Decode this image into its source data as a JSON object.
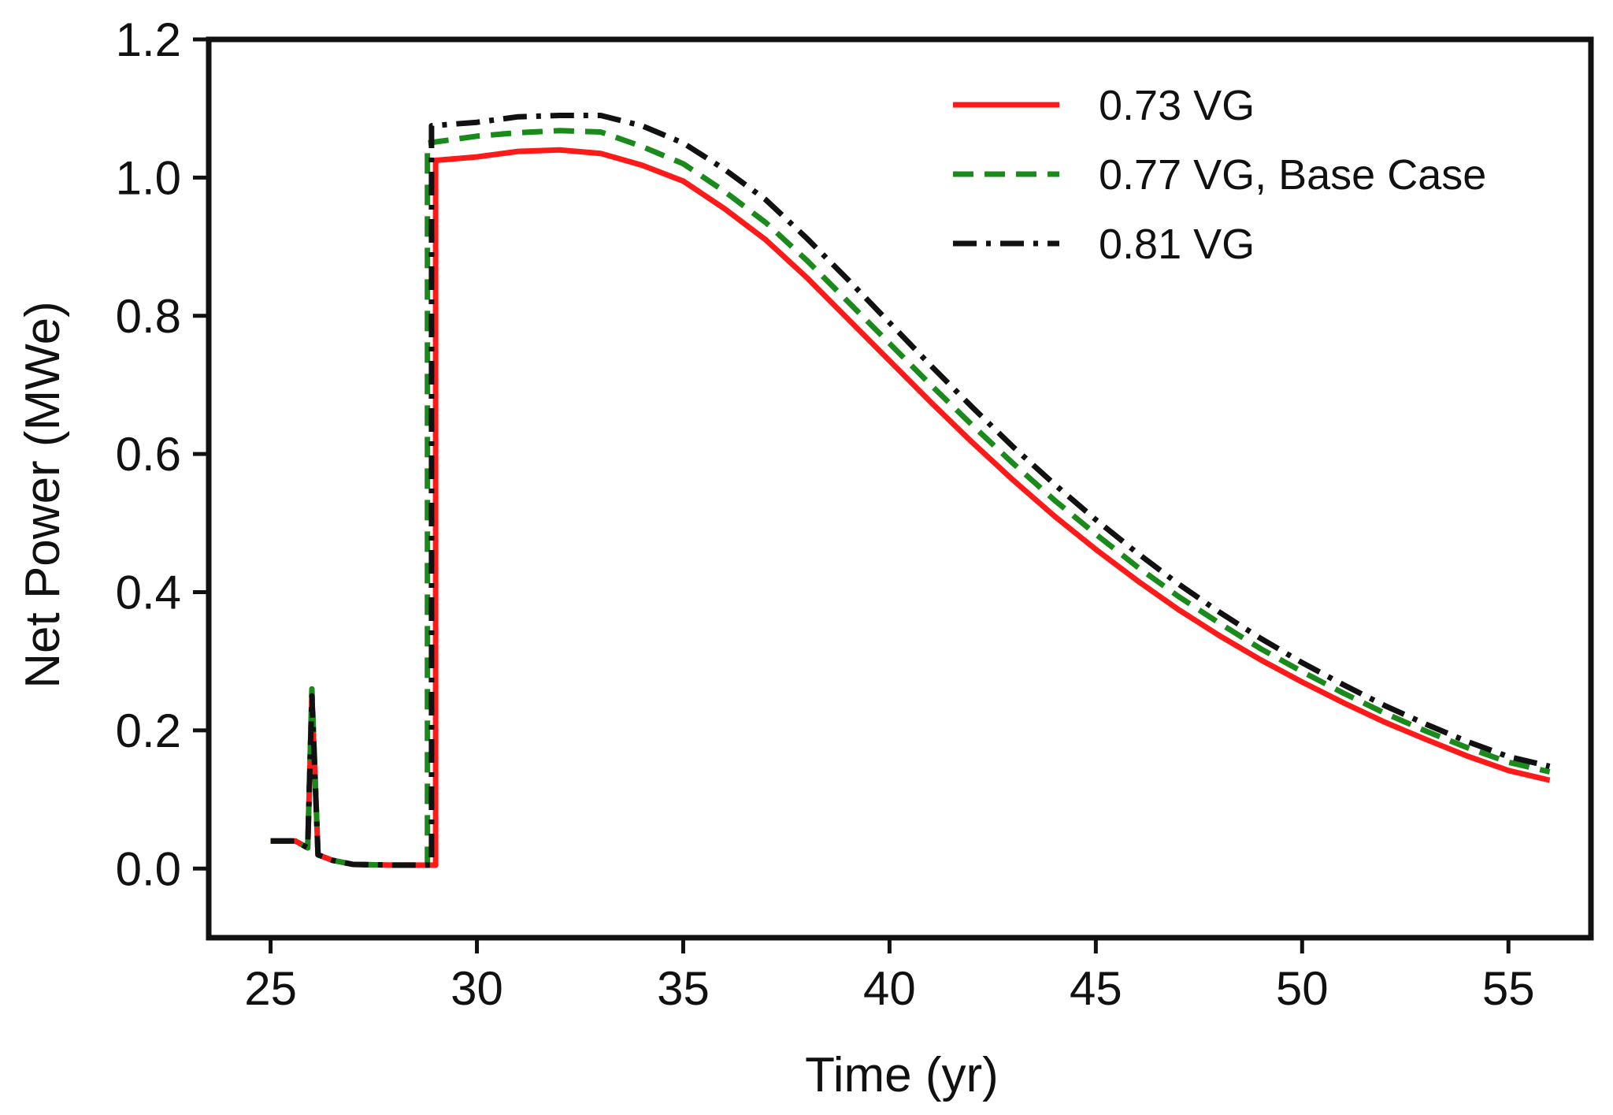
{
  "chart_data": {
    "type": "line",
    "title": "",
    "xlabel": "Time (yr)",
    "ylabel": "Net Power (MWe)",
    "xlim": [
      23.5,
      57
    ],
    "ylim": [
      -0.1,
      1.2
    ],
    "xticks": [
      25,
      30,
      35,
      40,
      45,
      50,
      55
    ],
    "xtick_labels": [
      "25",
      "30",
      "35",
      "40",
      "45",
      "50",
      "55"
    ],
    "yticks": [
      0.0,
      0.2,
      0.4,
      0.6,
      0.8,
      1.0,
      1.2
    ],
    "ytick_labels": [
      "0.0",
      "0.2",
      "0.4",
      "0.6",
      "0.8",
      "1.0",
      "1.2"
    ],
    "grid": false,
    "legend_position": "top-right",
    "series": [
      {
        "name": "0.73 VG",
        "color": "#ff1a1a",
        "dash": "solid",
        "points": [
          [
            25.0,
            0.04
          ],
          [
            25.6,
            0.04
          ],
          [
            25.9,
            0.03
          ],
          [
            26.0,
            0.25
          ],
          [
            26.15,
            0.02
          ],
          [
            26.5,
            0.012
          ],
          [
            27.0,
            0.006
          ],
          [
            28.0,
            0.005
          ],
          [
            29.0,
            0.005
          ],
          [
            29.0,
            1.025
          ],
          [
            30.0,
            1.03
          ],
          [
            31.0,
            1.038
          ],
          [
            32.0,
            1.04
          ],
          [
            33.0,
            1.035
          ],
          [
            34.0,
            1.018
          ],
          [
            35.0,
            0.995
          ],
          [
            36.0,
            0.955
          ],
          [
            37.0,
            0.91
          ],
          [
            38.0,
            0.855
          ],
          [
            39.0,
            0.795
          ],
          [
            40.0,
            0.735
          ],
          [
            41.0,
            0.675
          ],
          [
            42.0,
            0.617
          ],
          [
            43.0,
            0.562
          ],
          [
            44.0,
            0.51
          ],
          [
            45.0,
            0.462
          ],
          [
            46.0,
            0.417
          ],
          [
            47.0,
            0.375
          ],
          [
            48.0,
            0.337
          ],
          [
            49.0,
            0.302
          ],
          [
            50.0,
            0.27
          ],
          [
            51.0,
            0.24
          ],
          [
            52.0,
            0.212
          ],
          [
            53.0,
            0.187
          ],
          [
            54.0,
            0.163
          ],
          [
            55.0,
            0.142
          ],
          [
            56.0,
            0.128
          ]
        ]
      },
      {
        "name": "0.77 VG, Base Case",
        "color": "#1a8a1a",
        "dash": "dashed",
        "points": [
          [
            25.0,
            0.04
          ],
          [
            25.6,
            0.04
          ],
          [
            25.9,
            0.03
          ],
          [
            26.0,
            0.26
          ],
          [
            26.15,
            0.02
          ],
          [
            26.5,
            0.012
          ],
          [
            27.0,
            0.006
          ],
          [
            28.0,
            0.005
          ],
          [
            28.8,
            0.005
          ],
          [
            28.8,
            1.05
          ],
          [
            30.0,
            1.06
          ],
          [
            31.0,
            1.065
          ],
          [
            32.0,
            1.068
          ],
          [
            33.0,
            1.066
          ],
          [
            34.0,
            1.045
          ],
          [
            35.0,
            1.02
          ],
          [
            36.0,
            0.98
          ],
          [
            37.0,
            0.935
          ],
          [
            38.0,
            0.88
          ],
          [
            39.0,
            0.82
          ],
          [
            40.0,
            0.76
          ],
          [
            41.0,
            0.7
          ],
          [
            42.0,
            0.642
          ],
          [
            43.0,
            0.586
          ],
          [
            44.0,
            0.533
          ],
          [
            45.0,
            0.484
          ],
          [
            46.0,
            0.437
          ],
          [
            47.0,
            0.394
          ],
          [
            48.0,
            0.355
          ],
          [
            49.0,
            0.318
          ],
          [
            50.0,
            0.285
          ],
          [
            51.0,
            0.254
          ],
          [
            52.0,
            0.225
          ],
          [
            53.0,
            0.199
          ],
          [
            54.0,
            0.175
          ],
          [
            55.0,
            0.154
          ],
          [
            56.0,
            0.14
          ]
        ]
      },
      {
        "name": "0.81 VG",
        "color": "#111111",
        "dash": "dashdot",
        "points": [
          [
            25.0,
            0.04
          ],
          [
            25.6,
            0.04
          ],
          [
            25.9,
            0.03
          ],
          [
            26.0,
            0.25
          ],
          [
            26.15,
            0.02
          ],
          [
            26.5,
            0.012
          ],
          [
            27.0,
            0.006
          ],
          [
            28.0,
            0.005
          ],
          [
            28.9,
            0.005
          ],
          [
            28.9,
            1.075
          ],
          [
            30.0,
            1.08
          ],
          [
            31.0,
            1.088
          ],
          [
            32.0,
            1.09
          ],
          [
            33.0,
            1.09
          ],
          [
            34.0,
            1.075
          ],
          [
            35.0,
            1.05
          ],
          [
            36.0,
            1.012
          ],
          [
            37.0,
            0.968
          ],
          [
            38.0,
            0.912
          ],
          [
            39.0,
            0.852
          ],
          [
            40.0,
            0.79
          ],
          [
            41.0,
            0.728
          ],
          [
            42.0,
            0.668
          ],
          [
            43.0,
            0.61
          ],
          [
            44.0,
            0.556
          ],
          [
            45.0,
            0.505
          ],
          [
            46.0,
            0.457
          ],
          [
            47.0,
            0.412
          ],
          [
            48.0,
            0.371
          ],
          [
            49.0,
            0.333
          ],
          [
            50.0,
            0.298
          ],
          [
            51.0,
            0.266
          ],
          [
            52.0,
            0.236
          ],
          [
            53.0,
            0.209
          ],
          [
            54.0,
            0.184
          ],
          [
            55.0,
            0.162
          ],
          [
            56.0,
            0.148
          ]
        ]
      }
    ]
  }
}
